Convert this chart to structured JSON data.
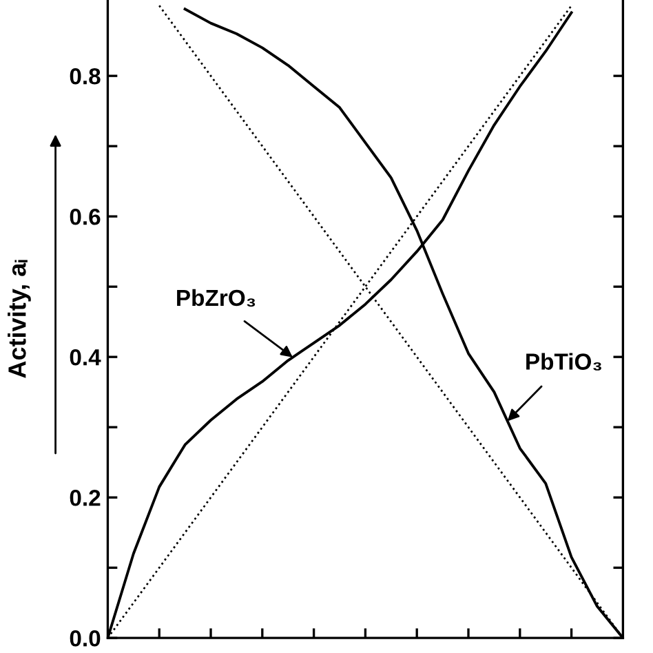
{
  "chart_data": {
    "type": "line",
    "ylabel": "Activity, aᵢ",
    "categories": [
      null,
      null,
      null,
      null,
      null,
      null,
      null,
      null,
      null,
      null,
      null,
      null,
      null,
      null,
      null,
      null,
      null,
      null,
      null,
      null,
      null
    ],
    "ylim": [
      0,
      0.908
    ],
    "yticks": [
      {
        "value": 0,
        "label": "0.0"
      },
      {
        "value": 0.1,
        "label": null
      },
      {
        "value": 0.2,
        "label": "0.2"
      },
      {
        "value": 0.3,
        "label": null
      },
      {
        "value": 0.4,
        "label": "0.4"
      },
      {
        "value": 0.5,
        "label": null
      },
      {
        "value": 0.6,
        "label": "0.6"
      },
      {
        "value": 0.7,
        "label": null
      },
      {
        "value": 0.8,
        "label": "0.8"
      }
    ],
    "tick_labels": "y",
    "series": [
      {
        "color": "#000000",
        "line_style": "solid",
        "values": [
          0,
          0.12,
          0.215,
          0.275,
          0.31,
          0.34,
          0.365,
          0.395,
          0.42,
          0.445,
          0.475,
          0.51,
          0.55,
          0.595,
          0.665,
          0.73,
          0.785,
          0.835,
          0.89,
          null,
          null
        ]
      },
      {
        "color": "#000000",
        "line_style": "solid",
        "values": [
          null,
          null,
          null,
          0.895,
          0.875,
          0.86,
          0.84,
          0.815,
          0.785,
          0.755,
          0.705,
          0.655,
          0.58,
          0.49,
          0.405,
          0.35,
          0.27,
          0.22,
          0.115,
          0.045,
          0
        ]
      },
      {
        "color": "#000000",
        "line_style": "dotted",
        "values": [
          0,
          0.05,
          0.1,
          0.15,
          0.2,
          0.25,
          0.3,
          0.35,
          0.4,
          0.45,
          0.5,
          0.55,
          0.6,
          0.65,
          0.7,
          0.75,
          0.8,
          0.85,
          0.9,
          null,
          null
        ]
      },
      {
        "color": "#000000",
        "line_style": "dotted",
        "values": [
          null,
          null,
          0.9,
          0.85,
          0.8,
          0.75,
          0.7,
          0.65,
          0.6,
          0.55,
          0.5,
          0.45,
          0.4,
          0.35,
          0.3,
          0.25,
          0.2,
          0.15,
          0.1,
          0.05,
          0
        ]
      }
    ],
    "annotations": [
      "PbZrO₃",
      "PbTiO₃"
    ]
  }
}
